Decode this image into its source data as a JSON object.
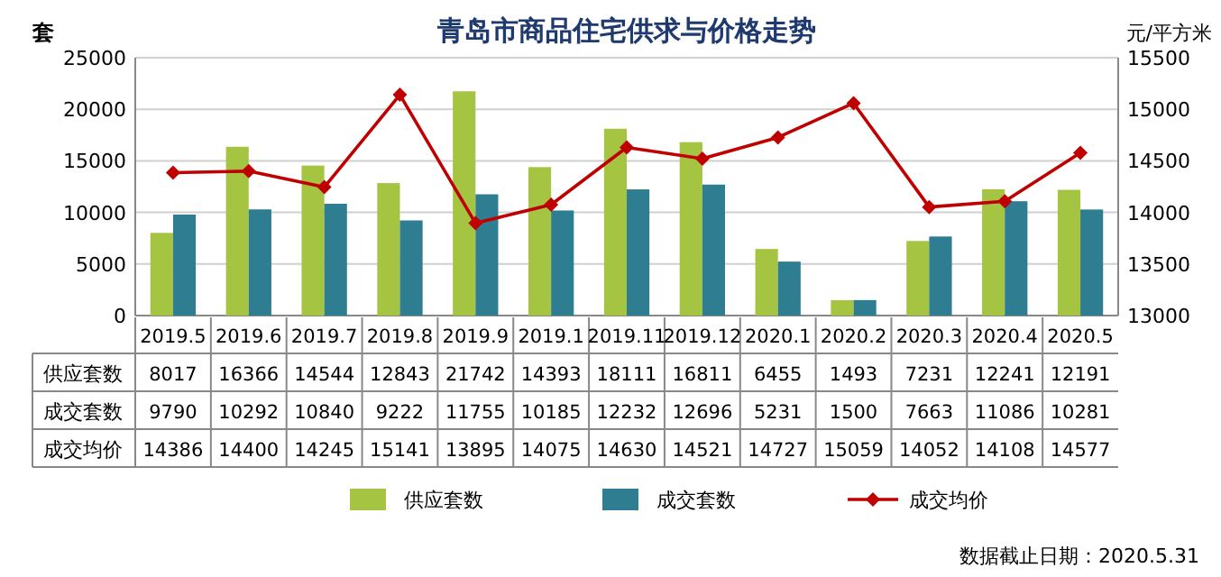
{
  "chart_data": {
    "type": "bar",
    "title": "青岛市商品住宅供求与价格走势",
    "ylabel": "套",
    "y2label": "元/平方米",
    "categories": [
      "2019.5",
      "2019.6",
      "2019.7",
      "2019.8",
      "2019.9",
      "2019.1",
      "2019.11",
      "2019.12",
      "2020.1",
      "2020.2",
      "2020.3",
      "2020.4",
      "2020.5"
    ],
    "series": [
      {
        "name": "供应套数",
        "color": "#a4c442",
        "values": [
          8017,
          16366,
          14544,
          12843,
          21742,
          14393,
          18111,
          16811,
          6455,
          1493,
          7231,
          12241,
          12191
        ]
      },
      {
        "name": "成交套数",
        "color": "#2e7d91",
        "values": [
          9790,
          10292,
          10840,
          9222,
          11755,
          10185,
          12232,
          12696,
          5231,
          1500,
          7663,
          11086,
          10281
        ]
      },
      {
        "name": "成交均价",
        "type": "line",
        "axis": "y2",
        "color": "#c00000",
        "marker": "diamond",
        "values": [
          14386,
          14400,
          14245,
          15141,
          13895,
          14075,
          14630,
          14521,
          14727,
          15059,
          14052,
          14108,
          14577
        ]
      }
    ],
    "ylim": [
      0,
      25000
    ],
    "yticks": [
      0,
      5000,
      10000,
      15000,
      20000,
      25000
    ],
    "y2lim": [
      13000,
      15500
    ],
    "y2ticks": [
      13000,
      13500,
      14000,
      14500,
      15000,
      15500
    ],
    "grid": "y",
    "legend": "bottom",
    "data_labels": true,
    "annotations": [
      "数据截止日期：2020.5.31"
    ]
  }
}
